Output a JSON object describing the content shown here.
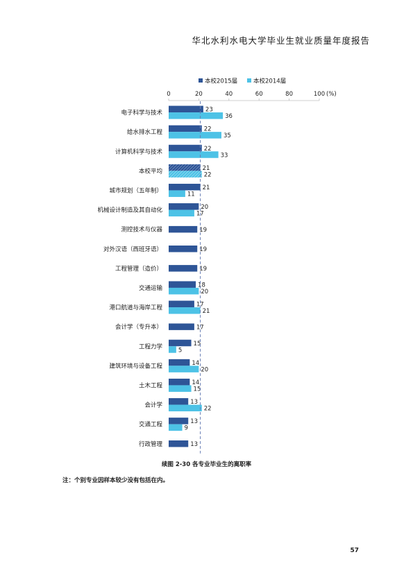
{
  "header": {
    "title": "华北水利水电大学毕业生就业质量年度报告"
  },
  "chart_data": {
    "type": "bar",
    "orientation": "horizontal",
    "unit": "(%)",
    "xlim": [
      0,
      100
    ],
    "xticks": [
      0,
      20,
      40,
      60,
      80,
      100
    ],
    "reference_line": 21,
    "legend": {
      "placement": "top"
    },
    "categories": [
      "电子科学与技术",
      "给水排水工程",
      "计算机科学与技术",
      "本校平均",
      "城市规划（五年制）",
      "机械设计制造及其自动化",
      "测控技术与仪器",
      "对外汉语（西班牙语）",
      "工程管理（造价）",
      "交通运输",
      "港口航道与海岸工程",
      "会计学（专升本）",
      "工程力学",
      "建筑环境与设备工程",
      "土木工程",
      "会计学",
      "交通工程",
      "行政管理"
    ],
    "series": [
      {
        "name": "本校2015届",
        "color": "#2e5597",
        "values": [
          23,
          22,
          22,
          21,
          21,
          20,
          19,
          19,
          19,
          18,
          17,
          17,
          15,
          14,
          14,
          13,
          13,
          13
        ]
      },
      {
        "name": "本校2014届",
        "color": "#4dc2e6",
        "values": [
          36,
          35,
          33,
          22,
          11,
          17,
          null,
          null,
          null,
          20,
          21,
          null,
          5,
          20,
          15,
          22,
          9,
          null
        ]
      }
    ],
    "highlight_category": "本校平均"
  },
  "caption": "续图 2-30    各专业毕业生的离职率",
  "note": "注：个别专业因样本较少没有包括在内。",
  "page_number": "57"
}
